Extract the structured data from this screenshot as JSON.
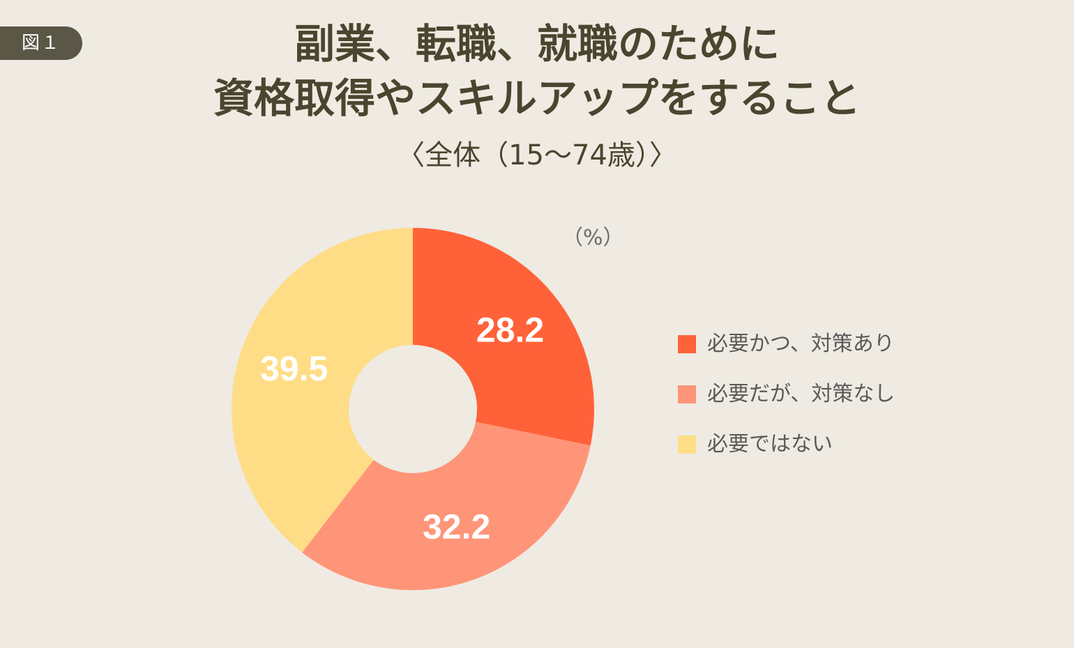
{
  "figure_label": "図１",
  "title_line1": "副業、転職、就職のために",
  "title_line2": "資格取得やスキルアップをすること",
  "subtitle": "〈全体（15〜74歳）〉",
  "unit": "（%）",
  "colors": {
    "background": "#efebe2",
    "badge": "#5a5747",
    "slice_1": "#ff6239",
    "slice_2": "#ff9578",
    "slice_3": "#ffdd87"
  },
  "chart_data": {
    "type": "pie",
    "variant": "donut",
    "categories": [
      "必要かつ、対策あり",
      "必要だが、対策なし",
      "必要ではない"
    ],
    "values": [
      28.2,
      32.2,
      39.5
    ],
    "data_labels": [
      "28.2",
      "32.2",
      "39.5"
    ],
    "legend_position": "right",
    "start_angle": "12 o'clock",
    "direction": "clockwise"
  }
}
